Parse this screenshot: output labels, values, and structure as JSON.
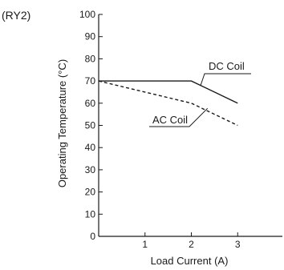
{
  "chart_data": {
    "type": "line",
    "title": "(RY2)",
    "xlabel": "Load Current (A)",
    "ylabel": "Operating Temperature (°C)",
    "xlim": [
      0,
      4
    ],
    "ylim": [
      0,
      100
    ],
    "x_ticks": [
      1,
      2,
      3
    ],
    "y_ticks": [
      0,
      10,
      20,
      30,
      40,
      50,
      60,
      70,
      80,
      90,
      100
    ],
    "grid": false,
    "series": [
      {
        "name": "DC Coil",
        "style": "solid",
        "color": "#1a1a1a",
        "x": [
          0,
          2,
          3
        ],
        "y": [
          70,
          70,
          60
        ]
      },
      {
        "name": "AC Coil",
        "style": "dashed",
        "color": "#1a1a1a",
        "x": [
          0,
          2,
          3
        ],
        "y": [
          70,
          60,
          50
        ]
      }
    ]
  }
}
